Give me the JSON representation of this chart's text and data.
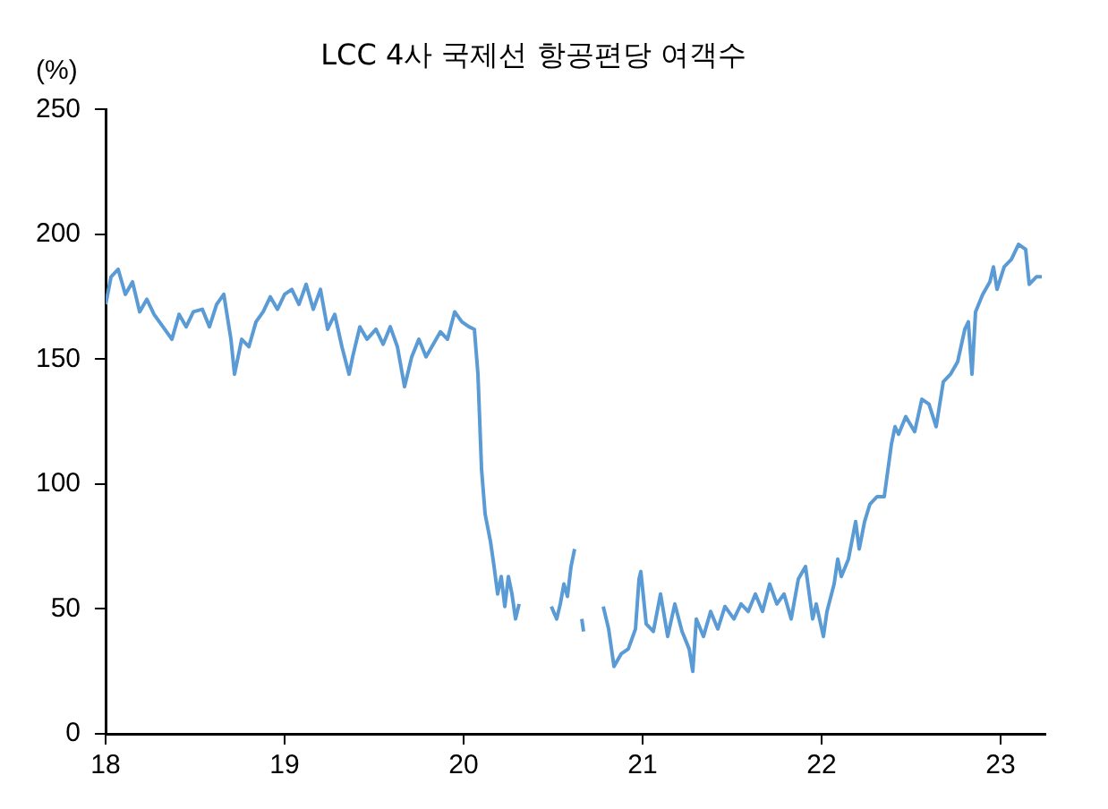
{
  "chart_data": {
    "type": "line",
    "title": "LCC 4사 국제선 항공편당 여객수",
    "ylabel": "(%)",
    "xlim": [
      18,
      23.25
    ],
    "xticks": [
      18,
      19,
      20,
      21,
      22,
      23
    ],
    "ylim": [
      0,
      250
    ],
    "yticks": [
      0,
      50,
      100,
      150,
      200,
      250
    ],
    "grid": false,
    "legend": false,
    "marker": "none",
    "line_style": "solid",
    "series": [
      {
        "color": "#5b9bd5",
        "x": [
          18.0,
          18.03,
          18.07,
          18.11,
          18.15,
          18.19,
          18.23,
          18.27,
          18.33,
          18.37,
          18.41,
          18.45,
          18.49,
          18.54,
          18.58,
          18.62,
          18.66,
          18.7,
          18.72,
          18.76,
          18.8,
          18.84,
          18.88,
          18.92,
          18.96,
          19.0,
          19.04,
          19.08,
          19.12,
          19.16,
          19.2,
          19.24,
          19.28,
          19.32,
          19.36,
          19.38,
          19.42,
          19.46,
          19.51,
          19.55,
          19.59,
          19.63,
          19.67,
          19.71,
          19.75,
          19.79,
          19.83,
          19.87,
          19.91,
          19.95,
          19.99,
          20.03,
          20.06,
          20.08,
          20.1,
          20.12,
          20.15,
          20.17,
          20.19,
          20.21,
          20.23,
          20.25,
          20.27,
          20.29,
          20.31,
          20.4,
          20.49,
          20.52,
          20.54,
          20.56,
          20.58,
          20.6,
          20.62,
          20.64,
          20.66,
          20.67,
          20.72,
          20.78,
          20.81,
          20.84,
          20.88,
          20.92,
          20.96,
          20.98,
          20.99,
          21.02,
          21.06,
          21.1,
          21.14,
          21.18,
          21.22,
          21.26,
          21.28,
          21.3,
          21.34,
          21.38,
          21.42,
          21.46,
          21.51,
          21.55,
          21.59,
          21.63,
          21.67,
          21.71,
          21.75,
          21.79,
          21.83,
          21.87,
          21.91,
          21.95,
          21.97,
          22.01,
          22.03,
          22.07,
          22.09,
          22.11,
          22.15,
          22.19,
          22.21,
          22.24,
          22.27,
          22.31,
          22.35,
          22.39,
          22.41,
          22.43,
          22.47,
          22.52,
          22.56,
          22.6,
          22.64,
          22.68,
          22.72,
          22.76,
          22.8,
          22.82,
          22.84,
          22.86,
          22.9,
          22.94,
          22.96,
          22.98,
          23.02,
          23.06,
          23.1,
          23.14,
          23.16,
          23.2,
          23.23
        ],
        "values": [
          172,
          183,
          186,
          176,
          181,
          169,
          174,
          168,
          162,
          158,
          168,
          163,
          169,
          170,
          163,
          172,
          176,
          158,
          144,
          158,
          155,
          165,
          169,
          175,
          170,
          176,
          178,
          172,
          180,
          170,
          178,
          162,
          168,
          155,
          144,
          151,
          163,
          158,
          162,
          156,
          163,
          155,
          139,
          151,
          158,
          151,
          156,
          161,
          158,
          169,
          165,
          163,
          162,
          144,
          106,
          88,
          77,
          67,
          56,
          63,
          51,
          63,
          56,
          46,
          52,
          null,
          51,
          46,
          52,
          60,
          55,
          67,
          74,
          null,
          46,
          41,
          null,
          51,
          42,
          27,
          32,
          34,
          42,
          62,
          65,
          44,
          41,
          56,
          39,
          52,
          41,
          34,
          25,
          46,
          39,
          49,
          42,
          51,
          46,
          52,
          49,
          56,
          49,
          60,
          52,
          56,
          46,
          62,
          67,
          46,
          52,
          39,
          49,
          60,
          70,
          63,
          70,
          85,
          74,
          85,
          92,
          95,
          95,
          116,
          123,
          120,
          127,
          121,
          134,
          132,
          123,
          141,
          144,
          149,
          162,
          165,
          144,
          169,
          176,
          181,
          187,
          178,
          187,
          190,
          196,
          194,
          180,
          183,
          183
        ]
      }
    ]
  }
}
